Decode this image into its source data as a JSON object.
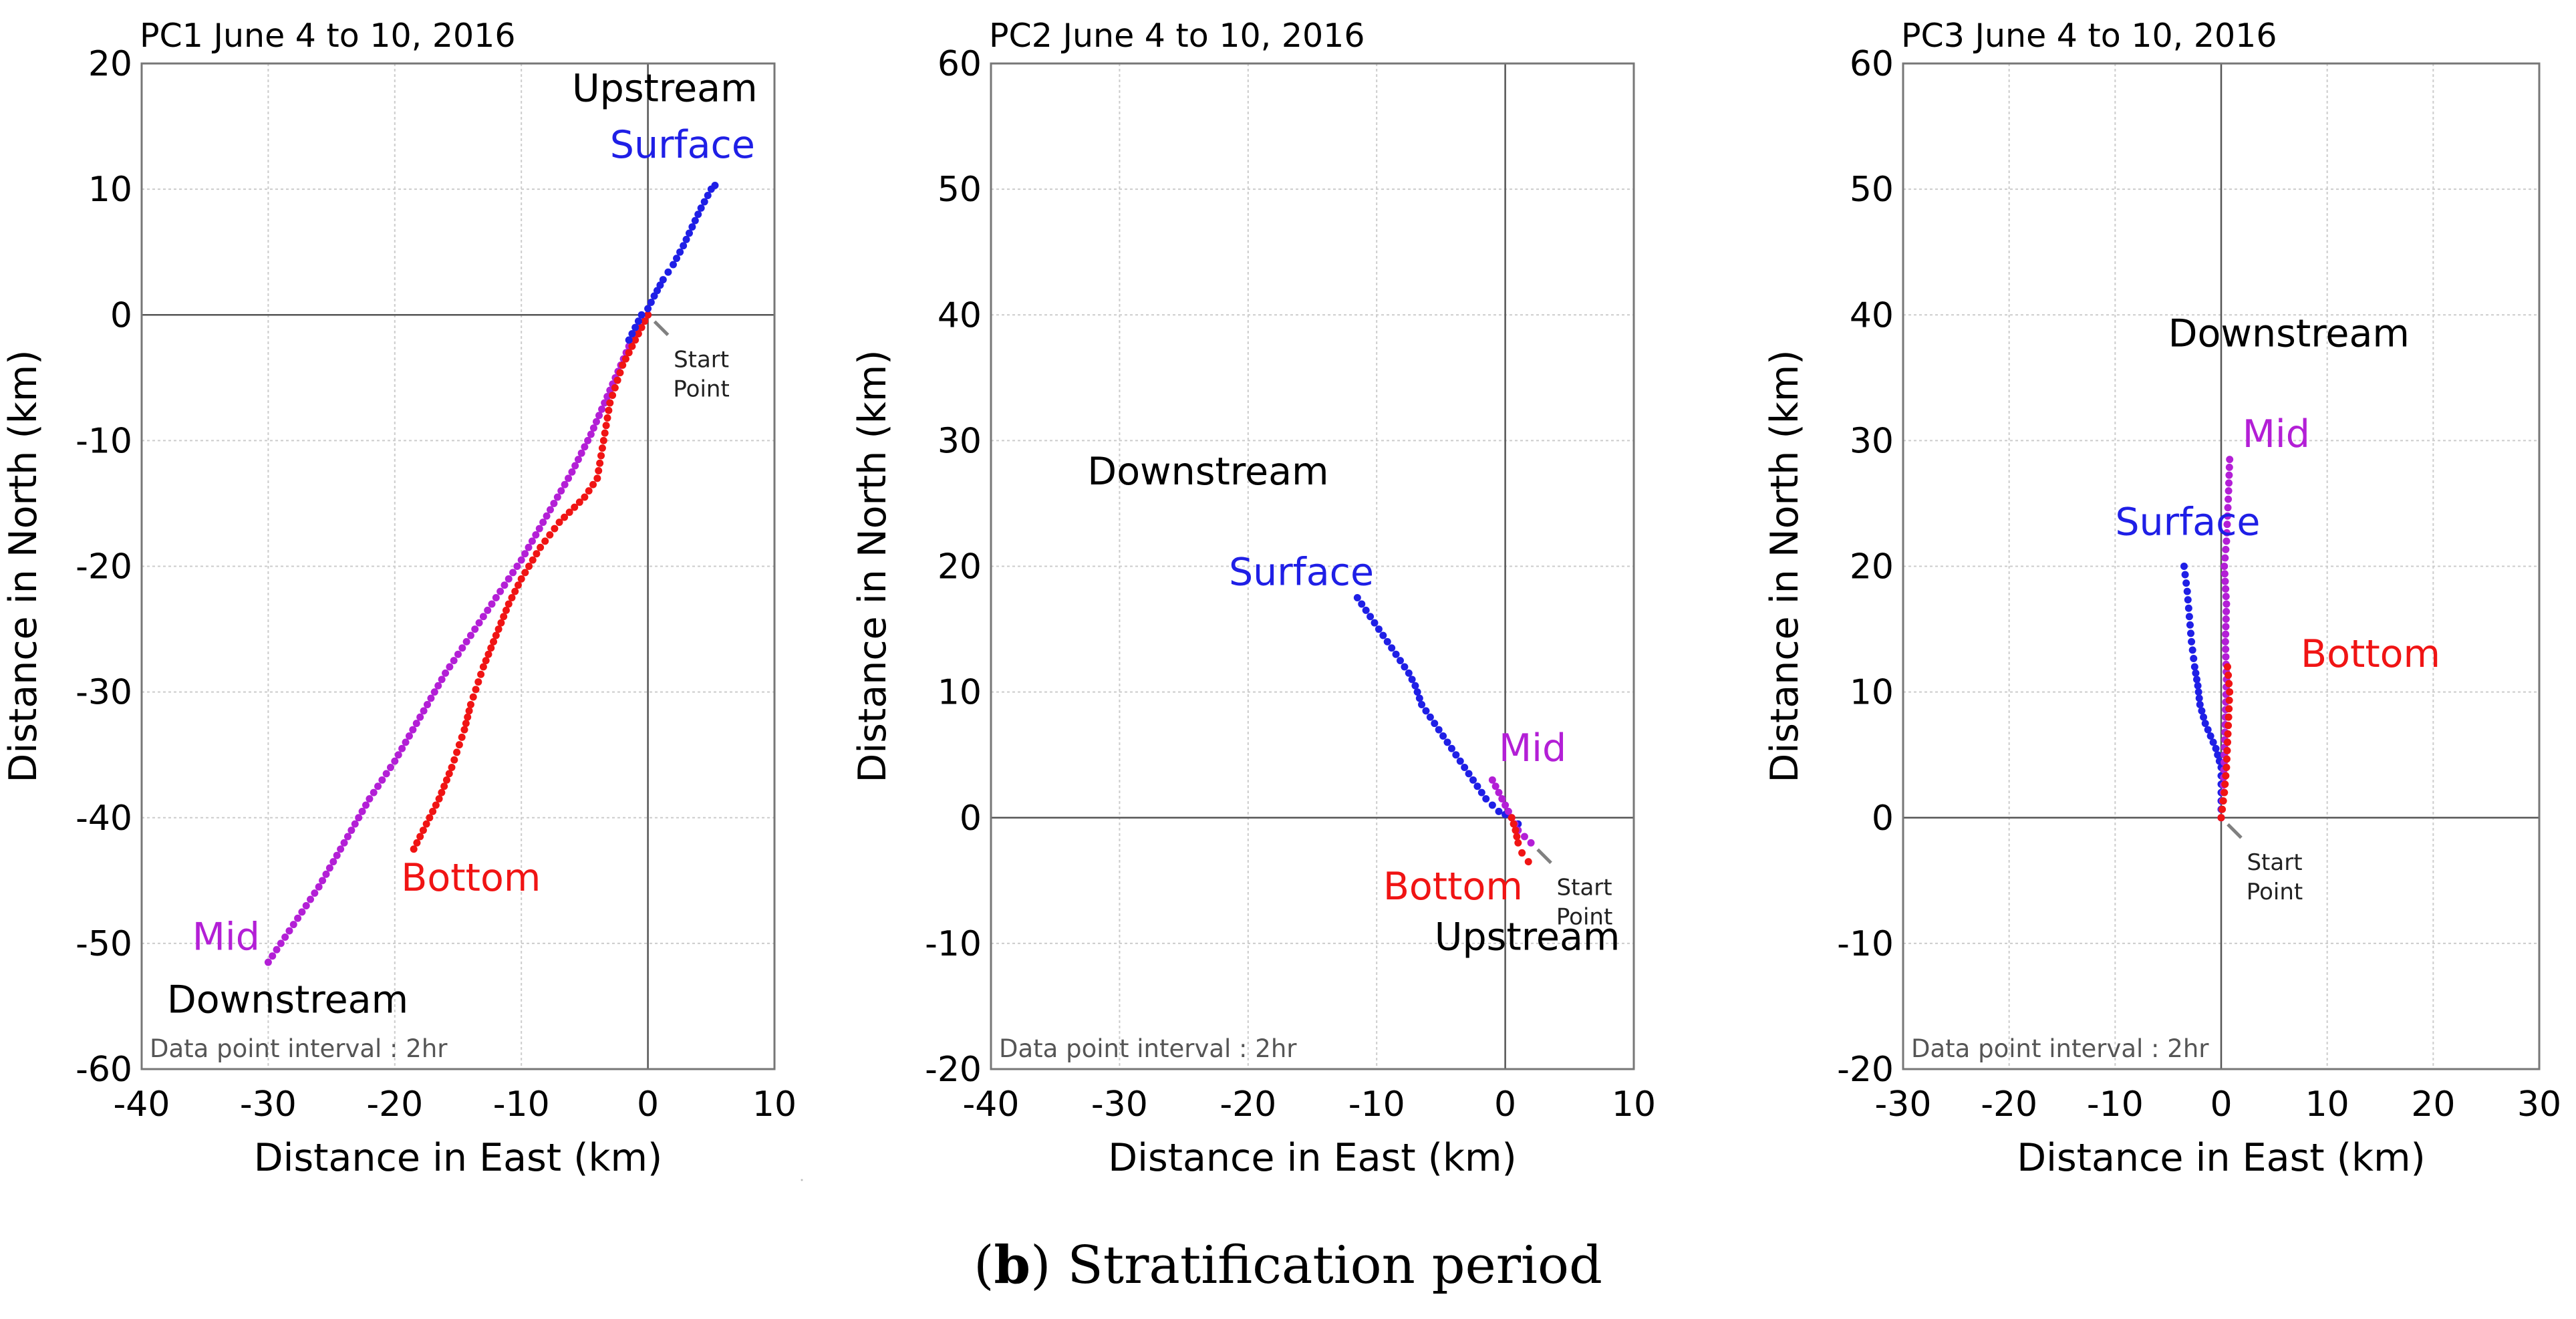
{
  "caption": {
    "prefix": "(",
    "letter": "b",
    "suffix": ") Stratification period"
  },
  "colors": {
    "surface": "#1f1fe6",
    "mid": "#b31fd6",
    "bottom": "#f01414",
    "grid": "#cccccc",
    "start_arrow": "#808080"
  },
  "chart_data": [
    {
      "type": "scatter",
      "title": "PC1  June 4 to 10, 2016",
      "xlabel": "Distance in East (km)",
      "ylabel": "Distance in North (km)",
      "xlim": [
        -40,
        10
      ],
      "ylim": [
        -60,
        20
      ],
      "xticks": [
        -40,
        -30,
        -20,
        -10,
        0,
        10
      ],
      "yticks": [
        -60,
        -50,
        -40,
        -30,
        -20,
        -10,
        0,
        10,
        20
      ],
      "note": "Data point interval : 2hr",
      "start_point": [
        0,
        0
      ],
      "start_label": [
        "Start",
        "Point"
      ],
      "series": [
        {
          "name": "Mid",
          "color": "mid",
          "points": [
            [
              0,
              0
            ],
            [
              -1.5,
              -2.5
            ],
            [
              -3,
              -6
            ],
            [
              -4.5,
              -9.5
            ],
            [
              -6,
              -12.5
            ],
            [
              -8,
              -16
            ],
            [
              -10,
              -19.5
            ],
            [
              -12,
              -22.5
            ],
            [
              -14,
              -25.5
            ],
            [
              -16,
              -28.5
            ],
            [
              -18,
              -32
            ],
            [
              -20,
              -35.5
            ],
            [
              -22,
              -38.5
            ],
            [
              -24,
              -42
            ],
            [
              -26,
              -45.5
            ],
            [
              -28,
              -48.5
            ],
            [
              -30,
              -51.5
            ]
          ]
        },
        {
          "name": "Bottom",
          "color": "bottom",
          "points": [
            [
              0,
              0
            ],
            [
              -1,
              -2
            ],
            [
              -2,
              -4
            ],
            [
              -3,
              -7
            ],
            [
              -3.5,
              -10
            ],
            [
              -4,
              -13
            ],
            [
              -5,
              -14.5
            ],
            [
              -7,
              -16.5
            ],
            [
              -8.5,
              -18.5
            ],
            [
              -10,
              -21
            ],
            [
              -11,
              -23
            ],
            [
              -12,
              -25.5
            ],
            [
              -13,
              -28
            ],
            [
              -14,
              -31
            ],
            [
              -14.5,
              -33
            ],
            [
              -15.5,
              -36
            ],
            [
              -16.5,
              -38.5
            ],
            [
              -17.5,
              -40.5
            ],
            [
              -18.5,
              -42.5
            ]
          ]
        },
        {
          "name": "Surface",
          "color": "surface",
          "points": [
            [
              -1.5,
              -2
            ],
            [
              -1,
              -1
            ],
            [
              -0.5,
              0
            ],
            [
              0,
              0.5
            ],
            [
              0.5,
              1.5
            ],
            [
              1.2,
              2.8
            ],
            [
              2,
              4
            ],
            [
              2.8,
              5.5
            ],
            [
              3.5,
              7
            ],
            [
              4.2,
              8.5
            ],
            [
              5,
              10
            ],
            [
              5.3,
              10.3
            ]
          ]
        }
      ],
      "labels": [
        {
          "text": "Upstream",
          "color": "black",
          "at": [
            -6,
            17
          ]
        },
        {
          "text": "Surface",
          "color": "surface",
          "at": [
            -3,
            12.5
          ]
        },
        {
          "text": "Bottom",
          "color": "bottom",
          "at": [
            -19.5,
            -45.8
          ]
        },
        {
          "text": "Mid",
          "color": "mid",
          "at": [
            -36,
            -50.5
          ]
        },
        {
          "text": "Downstream",
          "color": "black",
          "at": [
            -38,
            -55.5
          ]
        }
      ]
    },
    {
      "type": "scatter",
      "title": "PC2  June 4 to 10, 2016",
      "xlabel": "Distance in East (km)",
      "ylabel": "Distance in North (km)",
      "xlim": [
        -40,
        10
      ],
      "ylim": [
        -20,
        60
      ],
      "xticks": [
        -40,
        -30,
        -20,
        -10,
        0,
        10
      ],
      "yticks": [
        -20,
        -10,
        0,
        10,
        20,
        30,
        40,
        50,
        60
      ],
      "note": "Data point interval : 2hr",
      "start_point": [
        2,
        -2
      ],
      "start_label": [
        "Start",
        "Point"
      ],
      "series": [
        {
          "name": "Surface",
          "color": "surface",
          "points": [
            [
              -11.5,
              17.5
            ],
            [
              -10.5,
              16
            ],
            [
              -9.5,
              14.5
            ],
            [
              -8.5,
              13
            ],
            [
              -7.5,
              11.5
            ],
            [
              -7,
              10.5
            ],
            [
              -6.5,
              9
            ],
            [
              -5.5,
              7.5
            ],
            [
              -4.5,
              6
            ],
            [
              -3.5,
              4.5
            ],
            [
              -2.5,
              3
            ],
            [
              -1.5,
              1.5
            ],
            [
              -0.5,
              0.5
            ],
            [
              0.5,
              0
            ],
            [
              1,
              -0.5
            ]
          ]
        },
        {
          "name": "Mid",
          "color": "mid",
          "points": [
            [
              -1,
              3
            ],
            [
              -0.5,
              2
            ],
            [
              0,
              1
            ],
            [
              0.5,
              0
            ],
            [
              1,
              -1
            ],
            [
              1.5,
              -1.5
            ],
            [
              2,
              -2
            ]
          ]
        },
        {
          "name": "Bottom",
          "color": "bottom",
          "points": [
            [
              0.5,
              0
            ],
            [
              0.8,
              -1
            ],
            [
              1,
              -2
            ],
            [
              1.3,
              -2.8
            ],
            [
              1.8,
              -3.5
            ]
          ]
        }
      ],
      "labels": [
        {
          "text": "Downstream",
          "color": "black",
          "at": [
            -32.5,
            26.5
          ]
        },
        {
          "text": "Surface",
          "color": "surface",
          "at": [
            -21.5,
            18.5
          ]
        },
        {
          "text": "Mid",
          "color": "mid",
          "at": [
            -0.5,
            4.5
          ]
        },
        {
          "text": "Bottom",
          "color": "bottom",
          "at": [
            -9.5,
            -6.5
          ]
        },
        {
          "text": "Upstream",
          "color": "black",
          "at": [
            -5.5,
            -10.5
          ]
        }
      ]
    },
    {
      "type": "scatter",
      "title": "PC3  June 4 to 10, 2016",
      "xlabel": "Distance in East (km)",
      "ylabel": "Distance in North (km)",
      "xlim": [
        -30,
        30
      ],
      "ylim": [
        -20,
        60
      ],
      "xticks": [
        -30,
        -20,
        -10,
        0,
        10,
        20,
        30
      ],
      "yticks": [
        -20,
        -10,
        0,
        10,
        20,
        30,
        40,
        50,
        60
      ],
      "note": "Data point interval : 2hr",
      "start_point": [
        0,
        0
      ],
      "start_label": [
        "Start",
        "Point"
      ],
      "series": [
        {
          "name": "Surface",
          "color": "surface",
          "points": [
            [
              -3.5,
              20
            ],
            [
              -3.2,
              18
            ],
            [
              -3,
              16
            ],
            [
              -2.8,
              14
            ],
            [
              -2.5,
              12
            ],
            [
              -2.2,
              10.5
            ],
            [
              -2,
              9
            ],
            [
              -1.5,
              7.5
            ],
            [
              -1,
              6.5
            ],
            [
              -0.5,
              5.5
            ],
            [
              0,
              4
            ],
            [
              0,
              2
            ],
            [
              0,
              0
            ]
          ]
        },
        {
          "name": "Mid",
          "color": "mid",
          "points": [
            [
              0,
              0
            ],
            [
              0.2,
              2
            ],
            [
              0.3,
              5
            ],
            [
              0.4,
              8
            ],
            [
              0.5,
              11
            ],
            [
              0.4,
              14
            ],
            [
              0.5,
              17
            ],
            [
              0.3,
              20
            ],
            [
              0.5,
              22
            ],
            [
              0.6,
              24
            ],
            [
              0.7,
              26
            ],
            [
              0.8,
              28.5
            ]
          ]
        },
        {
          "name": "Bottom",
          "color": "bottom",
          "points": [
            [
              0,
              0
            ],
            [
              0.3,
              2
            ],
            [
              0.5,
              4
            ],
            [
              0.6,
              6
            ],
            [
              0.7,
              8
            ],
            [
              0.8,
              10
            ],
            [
              0.6,
              12
            ]
          ]
        }
      ],
      "labels": [
        {
          "text": "Downstream",
          "color": "black",
          "at": [
            -5,
            37.5
          ]
        },
        {
          "text": "Mid",
          "color": "mid",
          "at": [
            2,
            29.5
          ]
        },
        {
          "text": "Surface",
          "color": "surface",
          "at": [
            -10,
            22.5
          ]
        },
        {
          "text": "Bottom",
          "color": "bottom",
          "at": [
            7.5,
            12
          ]
        }
      ]
    }
  ]
}
